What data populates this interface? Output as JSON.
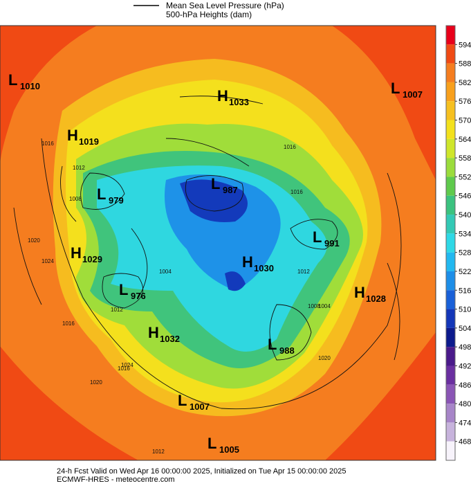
{
  "legend": {
    "line1": "Mean Sea Level Pressure (hPa)",
    "line2": "500-hPa Heights (dam)"
  },
  "centers": [
    {
      "kind": "L",
      "value": 1010
    },
    {
      "kind": "H",
      "value": 1033
    },
    {
      "kind": "L",
      "value": 1007
    },
    {
      "kind": "H",
      "value": 1019
    },
    {
      "kind": "L",
      "value": 979
    },
    {
      "kind": "L",
      "value": 987
    },
    {
      "kind": "L",
      "value": 991
    },
    {
      "kind": "H",
      "value": 1029
    },
    {
      "kind": "H",
      "value": 1030
    },
    {
      "kind": "H",
      "value": 1028
    },
    {
      "kind": "L",
      "value": 976
    },
    {
      "kind": "H",
      "value": 1032
    },
    {
      "kind": "L",
      "value": 988
    },
    {
      "kind": "L",
      "value": 1007
    },
    {
      "kind": "L",
      "value": 1005
    }
  ],
  "contour_labels": [
    1016,
    1012,
    1008,
    1020,
    1024,
    1016,
    1012,
    1004,
    1016,
    1020,
    1024,
    1012,
    1016,
    1008,
    1004,
    1020,
    1016,
    1012
  ],
  "colorbar": {
    "ticks": [
      594,
      588,
      582,
      576,
      570,
      564,
      558,
      552,
      546,
      540,
      534,
      528,
      522,
      516,
      510,
      504,
      498,
      492,
      486,
      480,
      474,
      468
    ],
    "colors": [
      "#e8001a",
      "#f04a14",
      "#f57d1f",
      "#f8a01c",
      "#f6c020",
      "#f3e11d",
      "#cfe62b",
      "#9bdc3c",
      "#5fca4c",
      "#3bc27f",
      "#33c9b5",
      "#2ed8e6",
      "#22b8f0",
      "#1d8ee8",
      "#1960d8",
      "#1336b8",
      "#0c1a8c",
      "#4a1a8a",
      "#6a2fa0",
      "#8a55b5",
      "#a785c8",
      "#c7b3dc",
      "#f7f3fb"
    ]
  },
  "footer": {
    "line1": "24-h Fcst Valid on Wed Apr 16 00:00:00 2025, Initialized on Tue Apr 15 00:00:00 2025",
    "line2": "ECMWF-HRES - meteocentre.com"
  }
}
